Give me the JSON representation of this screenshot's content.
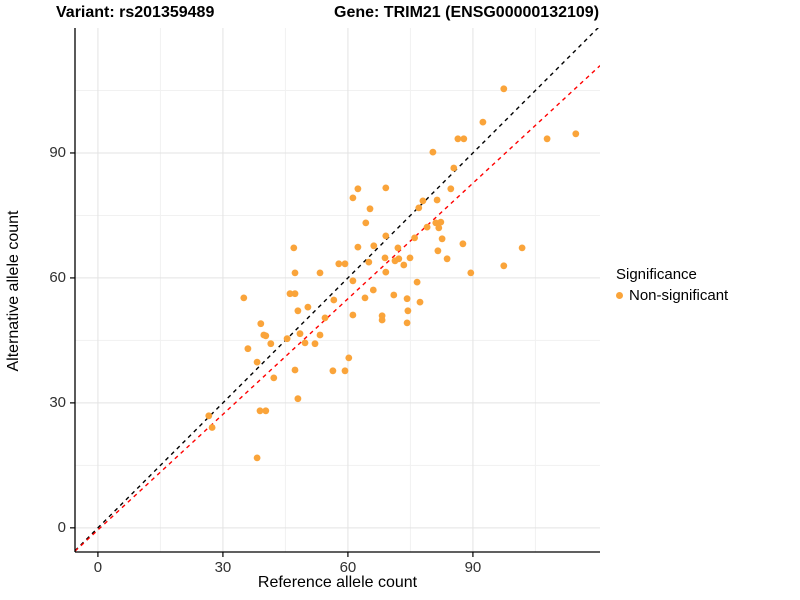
{
  "title": {
    "variant": "Variant: rs201359489",
    "gene": "Gene: TRIM21 (ENSG00000132109)"
  },
  "legend": {
    "title": "Significance",
    "items": [
      {
        "label": "Non-significant",
        "color": "#FAA43A"
      }
    ]
  },
  "colors": {
    "point": "#FAA43A",
    "identity_line": "#000000",
    "fit_line": "#FF0000",
    "grid_major": "#E3E3E3",
    "grid_minor": "#F1F1F1",
    "axis_line": "#000000",
    "tick_text": "#303030"
  },
  "chart_data": {
    "type": "scatter",
    "title": "",
    "xlabel": "Reference allele count",
    "ylabel": "Alternative allele count",
    "xlim": [
      -5.5,
      120.5
    ],
    "ylim": [
      -5.8,
      120.0
    ],
    "x_ticks": [
      0,
      30,
      60,
      90
    ],
    "y_ticks": [
      0,
      30,
      60,
      90
    ],
    "x_minor_ticks": [
      15,
      45,
      75,
      105
    ],
    "y_minor_ticks": [
      15,
      45,
      75,
      105
    ],
    "grid": true,
    "legend_position": "right",
    "series": [
      {
        "name": "Non-significant",
        "color": "#FAA43A",
        "points": [
          [
            26.6,
            26.9
          ],
          [
            27.4,
            24.1
          ],
          [
            36,
            43
          ],
          [
            38.2,
            39.8
          ],
          [
            38.2,
            16.8
          ],
          [
            38.9,
            28.1
          ],
          [
            40.3,
            28.1
          ],
          [
            39.8,
            46.3
          ],
          [
            41.5,
            44.2
          ],
          [
            42.2,
            36
          ],
          [
            45.4,
            45.4
          ],
          [
            47.3,
            37.9
          ],
          [
            48.5,
            46.6
          ],
          [
            49.7,
            44.4
          ],
          [
            52.1,
            44.2
          ],
          [
            48,
            31
          ],
          [
            53.3,
            46.3
          ],
          [
            60.2,
            40.8
          ],
          [
            56.4,
            37.7
          ],
          [
            59.3,
            37.7
          ],
          [
            47,
            67.2
          ],
          [
            47.3,
            61.2
          ],
          [
            53.3,
            61.2
          ],
          [
            46.1,
            56.2
          ],
          [
            47.3,
            56.2
          ],
          [
            35,
            55.2
          ],
          [
            48,
            52.1
          ],
          [
            50.4,
            53
          ],
          [
            39.1,
            49
          ],
          [
            40.3,
            46.1
          ],
          [
            54.5,
            50.4
          ],
          [
            62.4,
            81.4
          ],
          [
            69.1,
            81.6
          ],
          [
            61.2,
            79.2
          ],
          [
            65.3,
            76.6
          ],
          [
            64.3,
            73.2
          ],
          [
            69.1,
            70.1
          ],
          [
            62.4,
            67.4
          ],
          [
            66.2,
            67.7
          ],
          [
            57.8,
            63.4
          ],
          [
            59.3,
            63.4
          ],
          [
            65,
            63.8
          ],
          [
            61.2,
            59.3
          ],
          [
            56.6,
            54.7
          ],
          [
            64.1,
            55.2
          ],
          [
            71,
            55.9
          ],
          [
            61.2,
            51.1
          ],
          [
            68.2,
            50.9
          ],
          [
            68.2,
            49.9
          ],
          [
            66.1,
            57.1
          ],
          [
            78,
            78.5
          ],
          [
            81.4,
            78.7
          ],
          [
            77,
            76.8
          ],
          [
            84.7,
            81.4
          ],
          [
            81.1,
            73.2
          ],
          [
            82.3,
            73.4
          ],
          [
            81.8,
            72
          ],
          [
            79,
            72.2
          ],
          [
            76,
            69.6
          ],
          [
            82.6,
            69.4
          ],
          [
            87.6,
            68.2
          ],
          [
            81.6,
            66.5
          ],
          [
            74.9,
            64.8
          ],
          [
            83.8,
            64.6
          ],
          [
            72,
            67.2
          ],
          [
            68.9,
            64.8
          ],
          [
            71.3,
            64.1
          ],
          [
            69.1,
            61.4
          ],
          [
            72.2,
            64.6
          ],
          [
            73.4,
            63.1
          ],
          [
            76.6,
            59
          ],
          [
            77.3,
            54.2
          ],
          [
            74.2,
            55
          ],
          [
            74.4,
            52.1
          ],
          [
            74.2,
            49.2
          ],
          [
            101.8,
            67.2
          ],
          [
            97.4,
            62.9
          ],
          [
            89.5,
            61.2
          ],
          [
            86.4,
            93.4
          ],
          [
            87.8,
            93.4
          ],
          [
            80.4,
            90.2
          ],
          [
            85.4,
            86.4
          ],
          [
            97.4,
            105.4
          ],
          [
            92.4,
            97.4
          ],
          [
            107.8,
            93.4
          ],
          [
            114.7,
            94.6
          ]
        ]
      }
    ],
    "lines": [
      {
        "name": "identity",
        "slope": 1.0,
        "intercept": 0.0,
        "color": "#000000",
        "style": "dashed"
      },
      {
        "name": "fit",
        "slope": 0.925,
        "intercept": -0.5,
        "color": "#FF0000",
        "style": "dashed"
      }
    ]
  }
}
